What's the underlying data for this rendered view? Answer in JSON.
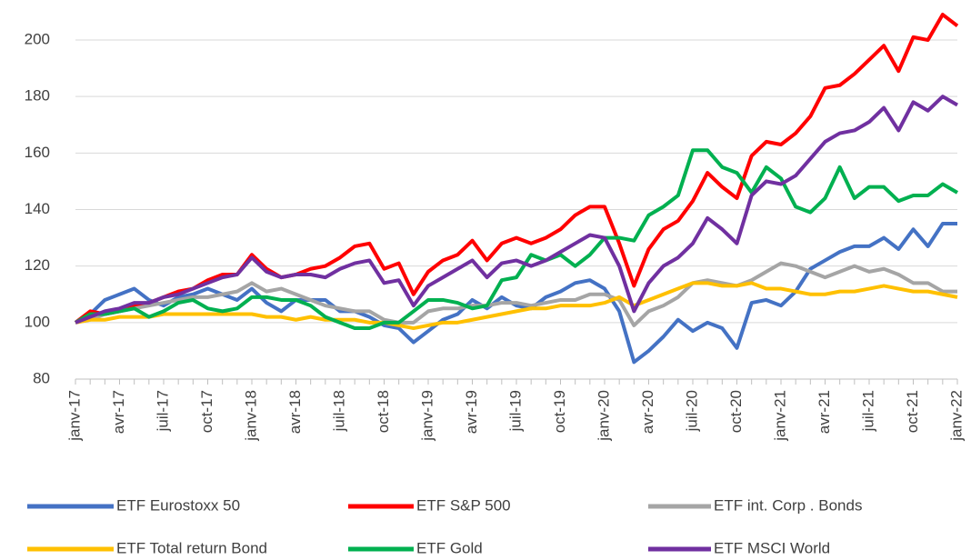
{
  "chart_data": {
    "type": "line",
    "categories": [
      "janv-17",
      null,
      null,
      "avr-17",
      null,
      null,
      "juil-17",
      null,
      null,
      "oct-17",
      null,
      null,
      "janv-18",
      null,
      null,
      "avr-18",
      null,
      null,
      "juil-18",
      null,
      null,
      "oct-18",
      null,
      null,
      "janv-19",
      null,
      null,
      "avr-19",
      null,
      null,
      "juil-19",
      null,
      null,
      "oct-19",
      null,
      null,
      "janv-20",
      null,
      null,
      "avr-20",
      null,
      null,
      "juil-20",
      null,
      null,
      "oct-20",
      null,
      null,
      "janv-21",
      null,
      null,
      "avr-21",
      null,
      null,
      "juil-21",
      null,
      null,
      "oct-21",
      null,
      null,
      "janv-22"
    ],
    "ylim": [
      80,
      200
    ],
    "yticks": [
      80,
      100,
      120,
      140,
      160,
      180,
      200
    ],
    "grid": true,
    "legend": "bottom",
    "series": [
      {
        "name": "ETF Eurostoxx 50",
        "color": "#4472c4",
        "values": [
          100,
          103,
          108,
          110,
          112,
          108,
          106,
          109,
          110,
          112,
          110,
          108,
          112,
          107,
          104,
          108,
          108,
          108,
          104,
          104,
          102,
          99,
          98,
          93,
          97,
          101,
          103,
          108,
          105,
          109,
          106,
          105,
          109,
          111,
          114,
          115,
          112,
          104,
          86,
          90,
          95,
          101,
          97,
          100,
          98,
          91,
          107,
          108,
          106,
          111,
          119,
          122,
          125,
          127,
          127,
          130,
          126,
          133,
          127,
          135,
          135
        ]
      },
      {
        "name": "ETF S&P 500",
        "color": "#ff0000",
        "values": [
          100,
          104,
          103,
          104,
          106,
          107,
          109,
          111,
          112,
          115,
          117,
          117,
          124,
          119,
          116,
          117,
          119,
          120,
          123,
          127,
          128,
          119,
          121,
          110,
          118,
          122,
          124,
          129,
          122,
          128,
          130,
          128,
          130,
          133,
          138,
          141,
          141,
          128,
          113,
          126,
          133,
          136,
          143,
          153,
          148,
          144,
          159,
          164,
          163,
          167,
          173,
          183,
          184,
          188,
          193,
          198,
          189,
          201,
          200,
          209,
          205
        ]
      },
      {
        "name": "ETF int. Corp . Bonds",
        "color": "#a5a5a5",
        "values": [
          100,
          101,
          103,
          104,
          105,
          106,
          107,
          108,
          109,
          109,
          110,
          111,
          114,
          111,
          112,
          110,
          108,
          106,
          105,
          104,
          104,
          101,
          100,
          100,
          104,
          105,
          105,
          106,
          106,
          107,
          107,
          106,
          107,
          108,
          108,
          110,
          110,
          108,
          99,
          104,
          106,
          109,
          114,
          115,
          114,
          113,
          115,
          118,
          121,
          120,
          118,
          116,
          118,
          120,
          118,
          119,
          117,
          114,
          114,
          111,
          111
        ]
      },
      {
        "name": "ETF Total return Bond",
        "color": "#ffc000",
        "values": [
          100,
          101,
          101,
          102,
          102,
          102,
          103,
          103,
          103,
          103,
          103,
          103,
          103,
          102,
          102,
          101,
          102,
          101,
          101,
          101,
          100,
          100,
          99,
          98,
          99,
          100,
          100,
          101,
          102,
          103,
          104,
          105,
          105,
          106,
          106,
          106,
          107,
          109,
          106,
          108,
          110,
          112,
          114,
          114,
          113,
          113,
          114,
          112,
          112,
          111,
          110,
          110,
          111,
          111,
          112,
          113,
          112,
          111,
          111,
          110,
          109
        ]
      },
      {
        "name": "ETF Gold",
        "color": "#00b050",
        "values": [
          100,
          103,
          103,
          104,
          105,
          102,
          104,
          107,
          108,
          105,
          104,
          105,
          109,
          109,
          108,
          108,
          106,
          102,
          100,
          98,
          98,
          100,
          100,
          104,
          108,
          108,
          107,
          105,
          106,
          115,
          116,
          124,
          122,
          124,
          120,
          124,
          130,
          130,
          129,
          138,
          141,
          145,
          161,
          161,
          155,
          153,
          146,
          155,
          151,
          141,
          139,
          144,
          155,
          144,
          148,
          148,
          143,
          145,
          145,
          149,
          146
        ]
      },
      {
        "name": "ETF MSCI World",
        "color": "#7030a0",
        "values": [
          100,
          102,
          104,
          105,
          107,
          107,
          109,
          110,
          112,
          114,
          116,
          117,
          123,
          118,
          116,
          117,
          117,
          116,
          119,
          121,
          122,
          114,
          115,
          106,
          113,
          116,
          119,
          122,
          116,
          121,
          122,
          120,
          122,
          125,
          128,
          131,
          130,
          120,
          104,
          114,
          120,
          123,
          128,
          137,
          133,
          128,
          145,
          150,
          149,
          152,
          158,
          164,
          167,
          168,
          171,
          176,
          168,
          178,
          175,
          180,
          177
        ]
      }
    ]
  }
}
